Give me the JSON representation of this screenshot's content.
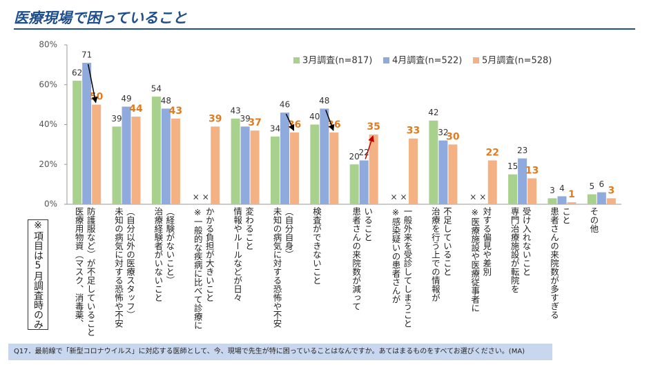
{
  "chart_data": {
    "type": "bar",
    "title": "医療現場で困っていること",
    "note": "※項目は5月調査時のみ",
    "footnote": "Q17．最前線で「新型コロナウイルス」に対応する医師として、今、現場で先生が特に困っていることはなんですか。あてはまるものをすべてお選びください。(MA)",
    "categories": [
      "医療用物資（マスク、消毒薬、\n防護服など）が不足していること",
      "未知の病気に対する恐怖や不安\n（自分以外の医療スタッフ）",
      "治療経験者がいないこと\n（経験がないこと）",
      "※一般的な疾病に比べて診療に\nかかる負担が大きいこと",
      "情報やルールなどが日々\n変わること",
      "未知の病気に対する恐怖や不安\n（自分自身）",
      "検査ができないこと",
      "患者さんの来院数が減って\nいること",
      "※感染疑いの患者さんが\n一般外来を受診してしまうこと",
      "治療を行う上での情報が\n不足していること",
      "※医療施設や医療従事者に\n対する偏見や差別",
      "専門治療施設が転院を\n受け入れないこと",
      "患者さんの来院数が多すぎる\nこと",
      "その他"
    ],
    "series": [
      {
        "name": "3月調査(n=817)",
        "color": "#a9d18e",
        "values": [
          62,
          39,
          54,
          null,
          43,
          34,
          40,
          20,
          null,
          42,
          null,
          15,
          3,
          5
        ],
        "value_labels": [
          "62",
          "39",
          "54",
          "×",
          "43",
          "34",
          "40",
          "20",
          "×",
          "42",
          "×",
          "15",
          "3",
          "5"
        ]
      },
      {
        "name": "4月調査(n=522)",
        "color": "#8faadc",
        "values": [
          71,
          49,
          48,
          null,
          39,
          46,
          48,
          22,
          null,
          32,
          null,
          23,
          4,
          6
        ],
        "value_labels": [
          "71",
          "49",
          "48",
          "×",
          "39",
          "46",
          "48",
          "22",
          "×",
          "32",
          "×",
          "23",
          "4",
          "6"
        ]
      },
      {
        "name": "5月調査(n=528)",
        "color": "#f4b183",
        "values": [
          50,
          44,
          43,
          39,
          37,
          36,
          36,
          35,
          33,
          30,
          22,
          13,
          1,
          3
        ]
      }
    ],
    "ylim": [
      0,
      80
    ],
    "yticks": [
      {
        "value": 0,
        "label": "0%"
      },
      {
        "value": 20,
        "label": "20%"
      },
      {
        "value": 40,
        "label": "40%"
      },
      {
        "value": 60,
        "label": "60%"
      },
      {
        "value": 80,
        "label": "80%"
      }
    ],
    "grid": false,
    "legend": "top-right"
  }
}
